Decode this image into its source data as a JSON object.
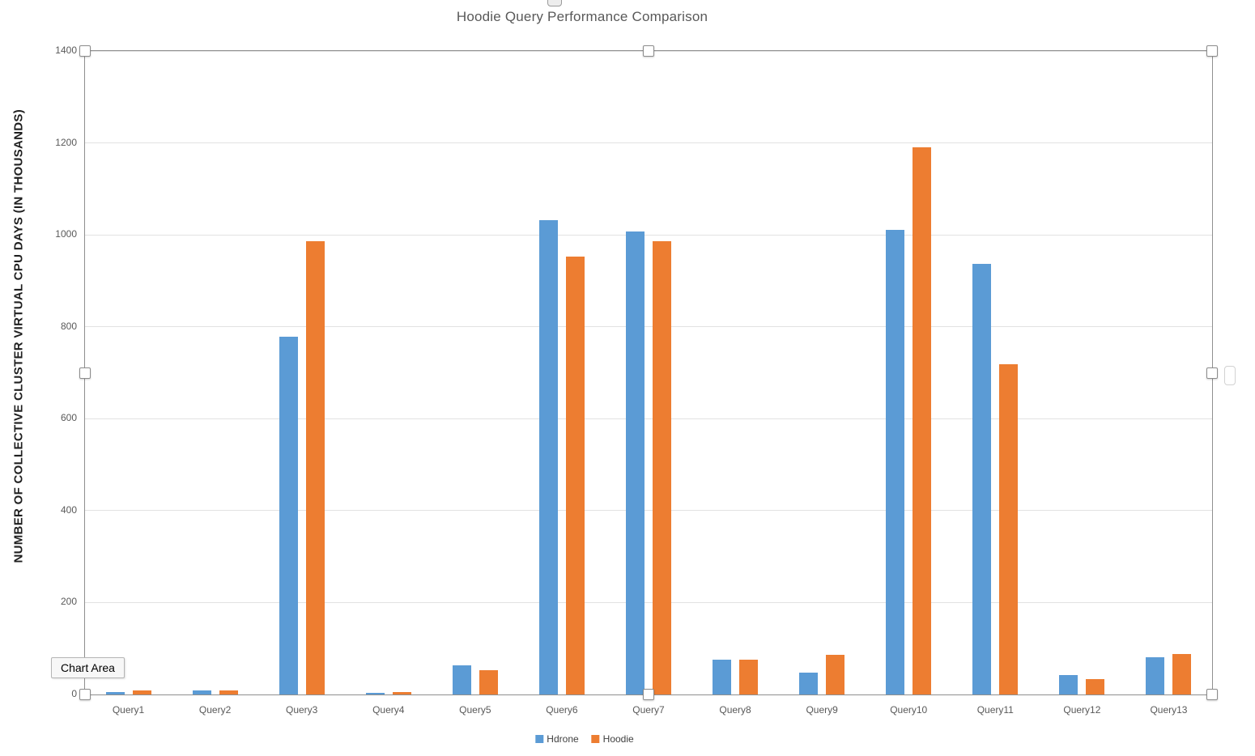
{
  "tooltip": {
    "label": "Chart Area"
  },
  "colors": {
    "hdrone_blue": "#5B9BD5",
    "hoodie_orange": "#ED7D31",
    "gridline": "#E2E2E2",
    "axis_border": "#8F8F8F",
    "title_text": "#595959",
    "tick_text": "#595959"
  },
  "chart_data": {
    "type": "bar",
    "title": "Hoodie Query Performance Comparison",
    "ylabel": "NUMBER OF COLLECTIVE CLUSTER VIRTUAL CPU DAYS (IN THOUSANDS)",
    "xlabel": "",
    "ylim": [
      0,
      1400
    ],
    "ytick_interval": 200,
    "grid": true,
    "legend_position": "bottom",
    "categories": [
      "Query1",
      "Query2",
      "Query3",
      "Query4",
      "Query5",
      "Query6",
      "Query7",
      "Query8",
      "Query9",
      "Query10",
      "Query11",
      "Query12",
      "Query13"
    ],
    "series": [
      {
        "name": "Hdrone",
        "color": "#5B9BD5",
        "values": [
          5,
          8,
          778,
          4,
          64,
          1032,
          1007,
          75,
          48,
          1010,
          937,
          42,
          81
        ]
      },
      {
        "name": "Hoodie",
        "color": "#ED7D31",
        "values": [
          8,
          8,
          987,
          5,
          53,
          952,
          987,
          75,
          86,
          1191,
          719,
          34,
          88
        ]
      }
    ]
  }
}
